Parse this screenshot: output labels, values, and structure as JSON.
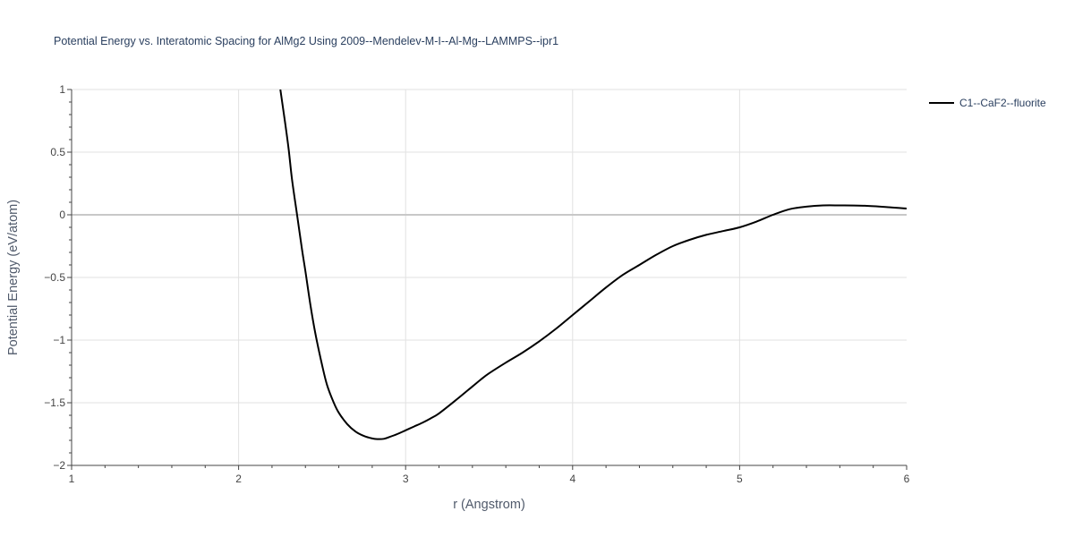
{
  "chart_data": {
    "type": "line",
    "title": "Potential Energy vs. Interatomic Spacing for AlMg2 Using 2009--Mendelev-M-I--Al-Mg--LAMMPS--ipr1",
    "xlabel": "r (Angstrom)",
    "ylabel": "Potential Energy (eV/atom)",
    "xlim": [
      1,
      6
    ],
    "ylim": [
      -2,
      1
    ],
    "x_ticks": [
      "1",
      "2",
      "3",
      "4",
      "5",
      "6"
    ],
    "y_ticks": [
      "1",
      "0.5",
      "0",
      "−0.5",
      "−1",
      "−1.5",
      "−2"
    ],
    "grid": true,
    "legend_position": "top-right",
    "colors": {
      "line": "#000000",
      "grid": "#e1e1e1",
      "zeroline": "#c8c8c8",
      "text": "#444444"
    },
    "series": [
      {
        "name": "C1--CaF2--fluorite",
        "x": [
          2.25,
          2.28,
          2.3,
          2.32,
          2.35,
          2.38,
          2.4,
          2.43,
          2.46,
          2.5,
          2.53,
          2.57,
          2.6,
          2.65,
          2.7,
          2.75,
          2.8,
          2.83,
          2.87,
          2.9,
          2.95,
          3.0,
          3.05,
          3.1,
          3.15,
          3.2,
          3.3,
          3.4,
          3.45,
          3.5,
          3.6,
          3.7,
          3.8,
          3.9,
          4.0,
          4.1,
          4.2,
          4.3,
          4.4,
          4.5,
          4.6,
          4.7,
          4.8,
          4.9,
          5.0,
          5.1,
          5.2,
          5.3,
          5.4,
          5.5,
          5.6,
          5.75,
          5.9,
          6.0
        ],
        "y": [
          1.0,
          0.72,
          0.52,
          0.28,
          0.0,
          -0.28,
          -0.45,
          -0.72,
          -0.95,
          -1.2,
          -1.36,
          -1.5,
          -1.58,
          -1.67,
          -1.73,
          -1.765,
          -1.785,
          -1.79,
          -1.788,
          -1.775,
          -1.75,
          -1.72,
          -1.69,
          -1.66,
          -1.625,
          -1.585,
          -1.48,
          -1.37,
          -1.315,
          -1.265,
          -1.18,
          -1.1,
          -1.01,
          -0.91,
          -0.8,
          -0.69,
          -0.58,
          -0.48,
          -0.4,
          -0.32,
          -0.25,
          -0.2,
          -0.16,
          -0.13,
          -0.1,
          -0.055,
          0.0,
          0.045,
          0.065,
          0.075,
          0.075,
          0.072,
          0.06,
          0.05
        ]
      }
    ]
  }
}
